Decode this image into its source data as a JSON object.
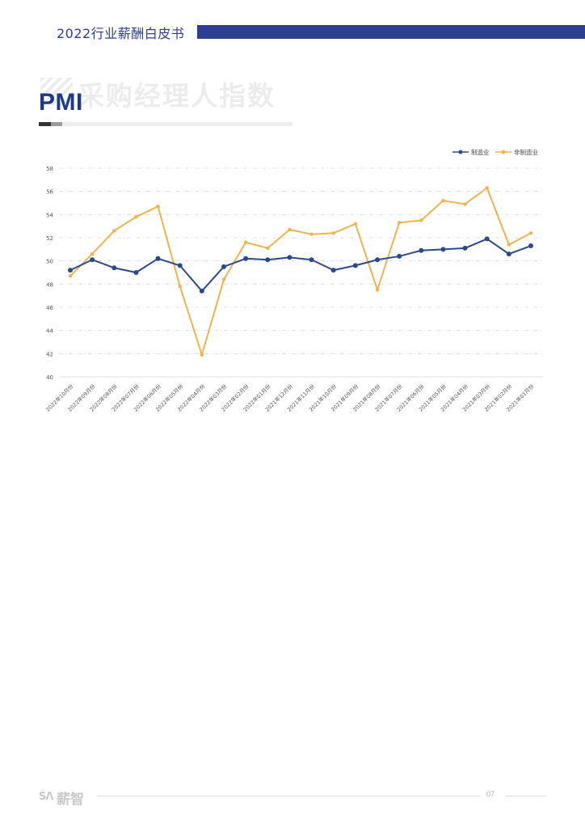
{
  "header": {
    "title": "2022行业薪酬白皮书",
    "bar_color": "#2e3f8f"
  },
  "section": {
    "watermark_text": "采购经理人指数",
    "title": "PMI"
  },
  "chart_data": {
    "type": "line",
    "categories": [
      "2022年10月份",
      "2022年09月份",
      "2022年08月份",
      "2022年07月份",
      "2022年06月份",
      "2022年05月份",
      "2022年04月份",
      "2022年03月份",
      "2022年02月份",
      "2022年01月份",
      "2021年12月份",
      "2021年11月份",
      "2021年10月份",
      "2021年09月份",
      "2021年08月份",
      "2021年07月份",
      "2021年06月份",
      "2021年05月份",
      "2021年04月份",
      "2021年03月份",
      "2021年02月份",
      "2021年01月份"
    ],
    "series": [
      {
        "name": "制造业",
        "color": "#2b4a8a",
        "values": [
          49.2,
          50.1,
          49.4,
          49.0,
          50.2,
          49.6,
          47.4,
          49.5,
          50.2,
          50.1,
          50.3,
          50.1,
          49.2,
          49.6,
          50.1,
          50.4,
          50.9,
          51.0,
          51.1,
          51.9,
          50.6,
          51.3
        ]
      },
      {
        "name": "非制造业",
        "color": "#f0b44c",
        "values": [
          48.7,
          50.6,
          52.6,
          53.8,
          54.7,
          47.8,
          41.9,
          48.4,
          51.6,
          51.1,
          52.7,
          52.3,
          52.4,
          53.2,
          47.5,
          53.3,
          53.5,
          55.2,
          54.9,
          56.3,
          51.4,
          52.4
        ]
      }
    ],
    "ylim": [
      40,
      58
    ],
    "yticks": [
      40,
      42,
      44,
      46,
      48,
      50,
      52,
      54,
      56,
      58
    ],
    "grid": true,
    "legend_position": "top-right"
  },
  "footer": {
    "logo_mark": "ŚΛ",
    "logo_name": "薪智",
    "page_number": "07"
  }
}
